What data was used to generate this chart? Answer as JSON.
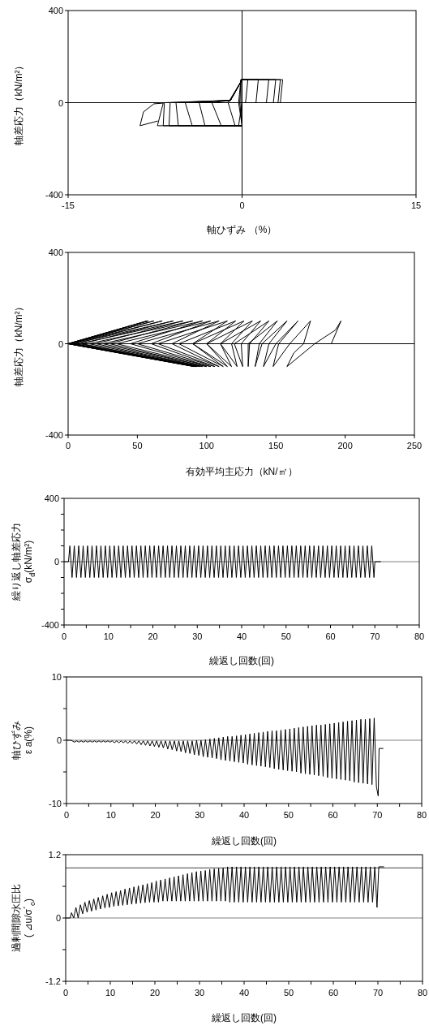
{
  "chart_data": [
    {
      "type": "line",
      "xlabel": "軸ひずみ （%）",
      "ylabel": "軸差応力（kN/m²）",
      "xlim": [
        -15,
        15
      ],
      "ylim": [
        -400,
        400
      ],
      "xticks": [
        -15,
        0,
        15
      ],
      "yticks": [
        -400,
        0,
        400
      ],
      "ref_lines": [
        {
          "axis": "x",
          "value": 0,
          "color": "#000000"
        },
        {
          "axis": "y",
          "value": 0,
          "color": "#000000"
        }
      ],
      "series": [
        {
          "color": "#000000",
          "x": [
            0,
            0,
            -0.1,
            -0.1,
            0,
            -0.3,
            0,
            0,
            -0.1,
            -0.2,
            0,
            -0.6,
            -1.2,
            0,
            -0.1,
            -0.3,
            0,
            -1.8,
            -2.6,
            -1.0,
            0,
            0.5,
            0.3,
            0,
            0,
            -3.2,
            -3.7,
            -1.0,
            0,
            1.4,
            1.2,
            0,
            0,
            -4.3,
            -4.9,
            -1.0,
            0,
            2.3,
            2.1,
            0,
            0,
            -5.5,
            -5.7,
            -1.0,
            0,
            2.9,
            2.7,
            0,
            0,
            -6.3,
            -6.2,
            -1.0,
            0,
            3.3,
            3.1,
            0,
            0,
            -6.8,
            -6.7,
            -1.0,
            0,
            3.5,
            3.3,
            0,
            0,
            -7.3,
            -6.8,
            -7.6,
            -8.5,
            -8.8,
            -7.3
          ],
          "values": [
            0,
            100,
            100,
            0,
            -100,
            -100,
            0,
            100,
            100,
            0,
            -100,
            -100,
            0,
            100,
            100,
            0,
            -100,
            -100,
            0,
            10,
            100,
            100,
            0,
            0,
            -100,
            -100,
            0,
            10,
            100,
            100,
            0,
            0,
            -100,
            -100,
            0,
            10,
            100,
            100,
            0,
            0,
            -100,
            -100,
            0,
            10,
            100,
            100,
            0,
            0,
            -100,
            -100,
            0,
            10,
            100,
            100,
            0,
            0,
            -100,
            -100,
            0,
            10,
            100,
            100,
            0,
            0,
            -100,
            -100,
            -2,
            -5,
            -40,
            -100,
            -80
          ]
        }
      ]
    },
    {
      "type": "line",
      "xlabel": "有効平均主応力（kN/㎡）",
      "ylabel": "軸差応力（kN/m²）",
      "xlim": [
        0,
        250
      ],
      "ylim": [
        -400,
        400
      ],
      "xticks": [
        0,
        50,
        100,
        150,
        200,
        250
      ],
      "yticks": [
        -400,
        0,
        400
      ],
      "ref_lines": [
        {
          "axis": "y",
          "value": 0,
          "color": "#000000"
        }
      ],
      "series": [
        {
          "color": "#000000",
          "x": [
            190,
            197,
            193,
            178,
            158,
            163,
            170,
            175,
            160,
            148,
            152,
            166,
            150,
            141,
            145,
            158,
            140,
            135,
            138,
            151,
            130,
            130,
            131,
            145,
            120,
            126,
            125,
            139,
            110,
            122,
            118,
            133,
            100,
            118,
            110,
            127,
            90,
            115,
            100,
            121,
            80,
            112,
            90,
            115,
            65,
            109,
            75,
            109,
            50,
            106,
            60,
            103,
            35,
            103,
            45,
            97,
            25,
            100,
            30,
            90,
            15,
            97,
            20,
            83,
            8,
            95,
            10,
            76,
            4,
            93,
            5,
            68,
            2,
            92,
            2,
            62,
            0,
            92,
            0,
            58,
            0,
            91,
            0,
            57,
            0
          ],
          "values": [
            0,
            100,
            60,
            0,
            -100,
            -40,
            0,
            100,
            0,
            -100,
            0,
            100,
            0,
            -100,
            0,
            100,
            0,
            -100,
            0,
            100,
            0,
            -100,
            0,
            100,
            0,
            -100,
            0,
            100,
            0,
            -100,
            0,
            100,
            0,
            -100,
            0,
            100,
            0,
            -100,
            0,
            100,
            0,
            -100,
            0,
            100,
            0,
            -100,
            0,
            100,
            0,
            -100,
            0,
            100,
            0,
            -100,
            0,
            100,
            0,
            -100,
            0,
            100,
            0,
            -100,
            0,
            100,
            0,
            -100,
            0,
            100,
            0,
            -100,
            0,
            100,
            0,
            -100,
            0,
            100,
            0,
            -100,
            0,
            100,
            0,
            -100,
            0,
            100,
            0
          ]
        }
      ]
    },
    {
      "type": "line",
      "xlabel": "繰返し回数(回)",
      "ylabel": "繰り返し軸差応力\nσ$_{d}$(kN/m²)",
      "xlim": [
        0,
        80
      ],
      "ylim": [
        -400,
        400
      ],
      "xticks": [
        0,
        {
          "value": 5,
          "label": null
        },
        10,
        {
          "value": 15,
          "label": null
        },
        20,
        {
          "value": 25,
          "label": null
        },
        30,
        {
          "value": 35,
          "label": null
        },
        40,
        {
          "value": 45,
          "label": null
        },
        50,
        {
          "value": 55,
          "label": null
        },
        60,
        {
          "value": 65,
          "label": null
        },
        70,
        {
          "value": 75,
          "label": null
        },
        80
      ],
      "yticks": [
        -400,
        {
          "value": -300,
          "label": null
        },
        {
          "value": -200,
          "label": null
        },
        {
          "value": -100,
          "label": null
        },
        0,
        {
          "value": 100,
          "label": null
        },
        {
          "value": 200,
          "label": null
        },
        {
          "value": 300,
          "label": null
        },
        400
      ],
      "ref_lines": [
        {
          "axis": "y",
          "value": 0,
          "color": "#808080"
        }
      ],
      "series": [
        {
          "color": "#000000",
          "x": [
            0,
            1.0,
            1.3,
            1.8,
            2.3,
            2.8,
            3.3,
            3.8,
            4.3,
            4.8,
            5.3,
            5.8,
            6.3,
            6.8,
            7.3,
            7.8,
            8.3,
            8.8,
            9.3,
            9.8,
            10.3,
            10.8,
            11.3,
            11.8,
            12.3,
            12.8,
            13.3,
            13.8,
            14.3,
            14.8,
            15.3,
            15.8,
            16.3,
            16.8,
            17.3,
            17.8,
            18.3,
            18.8,
            19.3,
            19.8,
            20.3,
            20.8,
            21.3,
            21.8,
            22.3,
            22.8,
            23.3,
            23.8,
            24.3,
            24.8,
            25.3,
            25.8,
            26.3,
            26.8,
            27.3,
            27.8,
            28.3,
            28.8,
            29.3,
            29.8,
            30.3,
            30.8,
            31.3,
            31.8,
            32.3,
            32.8,
            33.3,
            33.8,
            34.3,
            34.8,
            35.3,
            35.8,
            36.3,
            36.8,
            37.3,
            37.8,
            38.3,
            38.8,
            39.3,
            39.8,
            40.3,
            40.8,
            41.3,
            41.8,
            42.3,
            42.8,
            43.3,
            43.8,
            44.3,
            44.8,
            45.3,
            45.8,
            46.3,
            46.8,
            47.3,
            47.8,
            48.3,
            48.8,
            49.3,
            49.8,
            50.3,
            50.8,
            51.3,
            51.8,
            52.3,
            52.8,
            53.3,
            53.8,
            54.3,
            54.8,
            55.3,
            55.8,
            56.3,
            56.8,
            57.3,
            57.8,
            58.3,
            58.8,
            59.3,
            59.8,
            60.3,
            60.8,
            61.3,
            61.8,
            62.3,
            62.8,
            63.3,
            63.8,
            64.3,
            64.8,
            65.3,
            65.8,
            66.3,
            66.8,
            67.3,
            67.8,
            68.3,
            68.8,
            69.3,
            69.8,
            70.0,
            71.3
          ],
          "values": [
            0,
            0,
            100,
            -100,
            100,
            -100,
            100,
            -100,
            100,
            -100,
            100,
            -100,
            100,
            -100,
            100,
            -100,
            100,
            -100,
            100,
            -100,
            100,
            -100,
            100,
            -100,
            100,
            -100,
            100,
            -100,
            100,
            -100,
            100,
            -100,
            100,
            -100,
            100,
            -100,
            100,
            -100,
            100,
            -100,
            100,
            -100,
            100,
            -100,
            100,
            -100,
            100,
            -100,
            100,
            -100,
            100,
            -100,
            100,
            -100,
            100,
            -100,
            100,
            -100,
            100,
            -100,
            100,
            -100,
            100,
            -100,
            100,
            -100,
            100,
            -100,
            100,
            -100,
            100,
            -100,
            100,
            -100,
            100,
            -100,
            100,
            -100,
            100,
            -100,
            100,
            -100,
            100,
            -100,
            100,
            -100,
            100,
            -100,
            100,
            -100,
            100,
            -100,
            100,
            -100,
            100,
            -100,
            100,
            -100,
            100,
            -100,
            100,
            -100,
            100,
            -100,
            100,
            -100,
            100,
            -100,
            100,
            -100,
            100,
            -100,
            100,
            -100,
            100,
            -100,
            100,
            -100,
            100,
            -100,
            100,
            -100,
            100,
            -100,
            100,
            -100,
            100,
            -100,
            100,
            -100,
            100,
            -100,
            100,
            -100,
            100,
            -100,
            100,
            -100,
            100,
            -100,
            0,
            0
          ]
        }
      ]
    },
    {
      "type": "line",
      "xlabel": "繰返し回数(回)",
      "ylabel": "軸ひずみ\nε a(%)",
      "xlim": [
        0,
        80
      ],
      "ylim": [
        -10,
        10
      ],
      "xticks": [
        0,
        {
          "value": 5,
          "label": null
        },
        10,
        {
          "value": 15,
          "label": null
        },
        20,
        {
          "value": 25,
          "label": null
        },
        30,
        {
          "value": 35,
          "label": null
        },
        40,
        {
          "value": 45,
          "label": null
        },
        50,
        {
          "value": 55,
          "label": null
        },
        60,
        {
          "value": 65,
          "label": null
        },
        70,
        {
          "value": 75,
          "label": null
        },
        80
      ],
      "yticks": [
        -10,
        {
          "value": -5,
          "label": null
        },
        0,
        {
          "value": 5,
          "label": null
        },
        10
      ],
      "ref_lines": [
        {
          "axis": "y",
          "value": 0,
          "color": "#808080"
        }
      ],
      "series": [
        {
          "color": "#000000",
          "x": [
            0,
            1.0,
            1.3,
            1.8,
            2.3,
            2.8,
            3.3,
            3.8,
            4.3,
            4.8,
            5.3,
            5.8,
            6.3,
            6.8,
            7.3,
            7.8,
            8.3,
            8.8,
            9.3,
            9.8,
            10.3,
            10.8,
            11.3,
            11.8,
            12.3,
            12.8,
            13.3,
            13.8,
            14.3,
            14.8,
            15.3,
            15.8,
            16.3,
            16.8,
            17.3,
            17.8,
            18.3,
            18.8,
            19.3,
            19.8,
            20.3,
            20.8,
            21.3,
            21.8,
            22.3,
            22.8,
            23.3,
            23.8,
            24.3,
            24.8,
            25.3,
            25.8,
            26.3,
            26.8,
            27.3,
            27.8,
            28.3,
            28.8,
            29.3,
            29.8,
            30.3,
            30.8,
            31.3,
            31.8,
            32.3,
            32.8,
            33.3,
            33.8,
            34.3,
            34.8,
            35.3,
            35.8,
            36.3,
            36.8,
            37.3,
            37.8,
            38.3,
            38.8,
            39.3,
            39.8,
            40.3,
            40.8,
            41.3,
            41.8,
            42.3,
            42.8,
            43.3,
            43.8,
            44.3,
            44.8,
            45.3,
            45.8,
            46.3,
            46.8,
            47.3,
            47.8,
            48.3,
            48.8,
            49.3,
            49.8,
            50.3,
            50.8,
            51.3,
            51.8,
            52.3,
            52.8,
            53.3,
            53.8,
            54.3,
            54.8,
            55.3,
            55.8,
            56.3,
            56.8,
            57.3,
            57.8,
            58.3,
            58.8,
            59.3,
            59.8,
            60.3,
            60.8,
            61.3,
            61.8,
            62.3,
            62.8,
            63.3,
            63.8,
            64.3,
            64.8,
            65.3,
            65.8,
            66.3,
            66.8,
            67.3,
            67.8,
            68.3,
            68.8,
            69.3,
            69.8,
            70.2,
            70.4,
            71.3
          ],
          "values": [
            0,
            0,
            -0.1,
            -0.3,
            -0.1,
            -0.3,
            -0.1,
            -0.3,
            -0.1,
            -0.3,
            -0.1,
            -0.3,
            -0.1,
            -0.3,
            -0.1,
            -0.3,
            -0.1,
            -0.3,
            -0.1,
            -0.3,
            -0.1,
            -0.4,
            -0.1,
            -0.4,
            -0.1,
            -0.4,
            -0.1,
            -0.5,
            -0.1,
            -0.5,
            -0.1,
            -0.6,
            -0.1,
            -0.7,
            -0.1,
            -0.8,
            -0.1,
            -0.9,
            -0.1,
            -1.0,
            -0.1,
            -1.1,
            -0.1,
            -1.2,
            -0.1,
            -1.4,
            -0.1,
            -1.5,
            -0.1,
            -1.7,
            -0.1,
            -1.8,
            -0.1,
            -2.0,
            -0.1,
            -2.1,
            -0.1,
            -2.3,
            0,
            -2.4,
            0,
            -2.6,
            0.1,
            -2.7,
            0.2,
            -2.8,
            0.3,
            -2.9,
            0.4,
            -3.1,
            0.5,
            -3.2,
            0.6,
            -3.3,
            0.6,
            -3.4,
            0.7,
            -3.5,
            0.8,
            -3.6,
            0.9,
            -3.8,
            1.0,
            -3.9,
            1.1,
            -4.0,
            1.2,
            -4.1,
            1.3,
            -4.2,
            1.4,
            -4.3,
            1.5,
            -4.5,
            1.5,
            -4.6,
            1.6,
            -4.7,
            1.7,
            -4.8,
            1.8,
            -4.9,
            1.9,
            -5.0,
            2.0,
            -5.2,
            2.1,
            -5.3,
            2.2,
            -5.4,
            2.3,
            -5.5,
            2.4,
            -5.6,
            2.4,
            -5.7,
            2.5,
            -5.9,
            2.6,
            -6.0,
            2.7,
            -6.1,
            2.8,
            -6.2,
            2.9,
            -6.3,
            3.0,
            -6.4,
            3.1,
            -6.6,
            3.2,
            -6.7,
            3.3,
            -6.8,
            3.3,
            -6.9,
            3.4,
            -7.0,
            3.5,
            -7.3,
            -8.8,
            -1.3,
            -1.3
          ]
        }
      ]
    },
    {
      "type": "line",
      "xlabel": "繰返し回数(回)",
      "ylabel": "過剰間隙水圧比\n( ⊿u/σ´$_{o}$)",
      "xlim": [
        0,
        80
      ],
      "ylim": [
        -1.2,
        1.2
      ],
      "xticks": [
        0,
        {
          "value": 5,
          "label": null
        },
        10,
        {
          "value": 15,
          "label": null
        },
        20,
        {
          "value": 25,
          "label": null
        },
        30,
        {
          "value": 35,
          "label": null
        },
        40,
        {
          "value": 45,
          "label": null
        },
        50,
        {
          "value": 55,
          "label": null
        },
        60,
        {
          "value": 65,
          "label": null
        },
        70,
        {
          "value": 75,
          "label": null
        },
        80
      ],
      "yticks": [
        -1.2,
        {
          "value": -0.6,
          "label": null
        },
        0,
        {
          "value": 0.6,
          "label": null
        },
        1.2
      ],
      "ref_lines": [
        {
          "axis": "y",
          "value": 0,
          "color": "#808080"
        },
        {
          "axis": "y",
          "value": 0.95,
          "color": "#404040"
        }
      ],
      "series": [
        {
          "color": "#000000",
          "x": [
            0,
            1.0,
            1.3,
            1.8,
            2.3,
            2.8,
            3.3,
            3.8,
            4.3,
            4.8,
            5.3,
            5.8,
            6.3,
            6.8,
            7.3,
            7.8,
            8.3,
            8.8,
            9.3,
            9.8,
            10.3,
            10.8,
            11.3,
            11.8,
            12.3,
            12.8,
            13.3,
            13.8,
            14.3,
            14.8,
            15.3,
            15.8,
            16.3,
            16.8,
            17.3,
            17.8,
            18.3,
            18.8,
            19.3,
            19.8,
            20.3,
            20.8,
            21.3,
            21.8,
            22.3,
            22.8,
            23.3,
            23.8,
            24.3,
            24.8,
            25.3,
            25.8,
            26.3,
            26.8,
            27.3,
            27.8,
            28.3,
            28.8,
            29.3,
            29.8,
            30.3,
            30.8,
            31.3,
            31.8,
            32.3,
            32.8,
            33.3,
            33.8,
            34.3,
            34.8,
            35.3,
            35.8,
            36.3,
            36.8,
            37.3,
            37.8,
            38.3,
            38.8,
            39.3,
            39.8,
            40.3,
            40.8,
            41.3,
            41.8,
            42.3,
            42.8,
            43.3,
            43.8,
            44.3,
            44.8,
            45.3,
            45.8,
            46.3,
            46.8,
            47.3,
            47.8,
            48.3,
            48.8,
            49.3,
            49.8,
            50.3,
            50.8,
            51.3,
            51.8,
            52.3,
            52.8,
            53.3,
            53.8,
            54.3,
            54.8,
            55.3,
            55.8,
            56.3,
            56.8,
            57.3,
            57.8,
            58.3,
            58.8,
            59.3,
            59.8,
            60.3,
            60.8,
            61.3,
            61.8,
            62.3,
            62.8,
            63.3,
            63.8,
            64.3,
            64.8,
            65.3,
            65.8,
            66.3,
            66.8,
            67.3,
            67.8,
            68.3,
            68.8,
            69.3,
            69.8,
            70.2,
            71.3
          ],
          "values": [
            0,
            0,
            0.1,
            0,
            0.2,
            0,
            0.25,
            0.08,
            0.3,
            0.11,
            0.33,
            0.13,
            0.36,
            0.15,
            0.39,
            0.17,
            0.42,
            0.19,
            0.45,
            0.2,
            0.48,
            0.22,
            0.5,
            0.23,
            0.52,
            0.24,
            0.55,
            0.25,
            0.57,
            0.26,
            0.59,
            0.27,
            0.61,
            0.28,
            0.63,
            0.29,
            0.65,
            0.3,
            0.67,
            0.3,
            0.7,
            0.3,
            0.72,
            0.32,
            0.74,
            0.32,
            0.76,
            0.32,
            0.78,
            0.32,
            0.8,
            0.32,
            0.82,
            0.32,
            0.84,
            0.32,
            0.86,
            0.32,
            0.88,
            0.32,
            0.89,
            0.32,
            0.9,
            0.32,
            0.92,
            0.32,
            0.93,
            0.32,
            0.94,
            0.32,
            0.95,
            0.32,
            0.97,
            0.3,
            0.97,
            0.3,
            0.97,
            0.3,
            0.97,
            0.3,
            0.97,
            0.3,
            0.97,
            0.3,
            0.97,
            0.3,
            0.97,
            0.3,
            0.97,
            0.3,
            0.97,
            0.3,
            0.97,
            0.3,
            0.97,
            0.3,
            0.97,
            0.3,
            0.97,
            0.3,
            0.97,
            0.3,
            0.97,
            0.3,
            0.97,
            0.3,
            0.97,
            0.3,
            0.97,
            0.3,
            0.97,
            0.3,
            0.97,
            0.3,
            0.97,
            0.3,
            0.97,
            0.3,
            0.97,
            0.3,
            0.97,
            0.3,
            0.97,
            0.3,
            0.97,
            0.3,
            0.97,
            0.3,
            0.97,
            0.3,
            0.97,
            0.3,
            0.97,
            0.3,
            0.97,
            0.3,
            0.97,
            0.3,
            0.97,
            0.2,
            0.97,
            0.97
          ]
        }
      ]
    }
  ]
}
